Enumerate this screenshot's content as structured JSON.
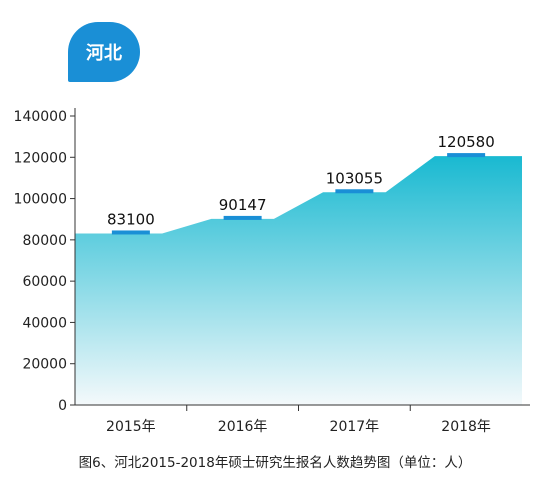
{
  "badge": {
    "label": "河北"
  },
  "chart_data": {
    "type": "area",
    "categories": [
      "2015年",
      "2016年",
      "2017年",
      "2018年"
    ],
    "values": [
      83100,
      90147,
      103055,
      120580
    ],
    "value_labels": [
      "83100",
      "90147",
      "103055",
      "120580"
    ],
    "yticks": [
      "0",
      "20000",
      "40000",
      "60000",
      "80000",
      "100000",
      "120000",
      "140000"
    ],
    "ylim": [
      0,
      140000
    ],
    "grid": false,
    "colors": {
      "fill_top": "#19b9d1",
      "fill_bottom": "#f4f9fb",
      "marker": "#1a8fd6"
    },
    "title": "图6、河北2015-2018年硕士研究生报名人数趋势图（单位：人）"
  }
}
